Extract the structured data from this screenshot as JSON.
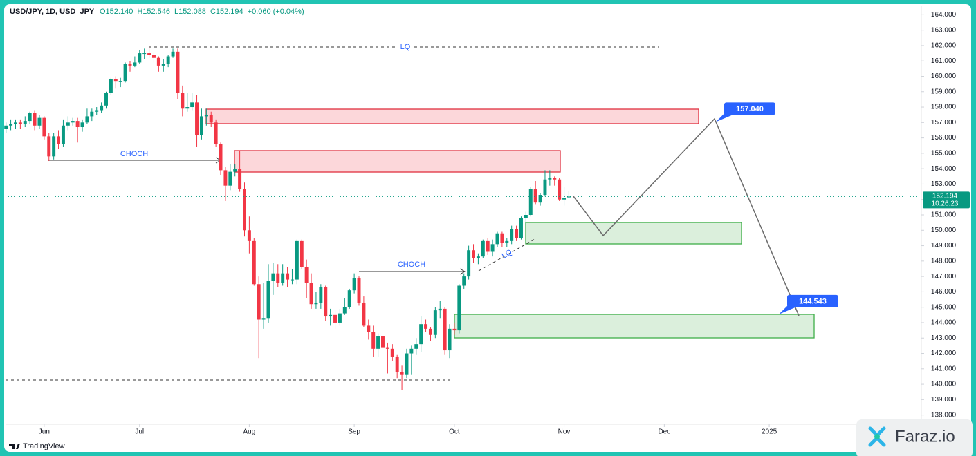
{
  "chart_data": {
    "type": "candlestick",
    "title": "USD/JPY, 1D, USD_JPY",
    "legend_values": [
      "O152.140",
      "H152.546",
      "L152.088",
      "C152.194",
      "+0.060 (+0.04%)"
    ],
    "up_color": "#089981",
    "down_color": "#f23645",
    "grid": false,
    "x": [
      0,
      1,
      2,
      3,
      4,
      5,
      6,
      7,
      8,
      9,
      10,
      11,
      12,
      13,
      14,
      15,
      16,
      17,
      18,
      19,
      20,
      21,
      22,
      23,
      24,
      25,
      26,
      27,
      28,
      29,
      30,
      31,
      32,
      33,
      34,
      35,
      36,
      37,
      38,
      39,
      40,
      41,
      42,
      43,
      44,
      45,
      46,
      47,
      48,
      49,
      50,
      51,
      52,
      53,
      54,
      55,
      56,
      57,
      58,
      59,
      60,
      61,
      62,
      63,
      64,
      65,
      66,
      67,
      68,
      69,
      70,
      71,
      72,
      73,
      74,
      75,
      76,
      77,
      78,
      79,
      80,
      81,
      82,
      83,
      84,
      85,
      86,
      87,
      88,
      89,
      90,
      91,
      92,
      93,
      94,
      95,
      96,
      97,
      98,
      99,
      100,
      101,
      102,
      103,
      104,
      105,
      106,
      107,
      108,
      109,
      110,
      111,
      112,
      113,
      114,
      115,
      116,
      117,
      118
    ],
    "ohlc": [
      [
        156.6,
        157.0,
        156.3,
        156.8
      ],
      [
        156.8,
        157.2,
        156.5,
        156.9
      ],
      [
        156.9,
        157.2,
        156.6,
        157.0
      ],
      [
        157.0,
        157.2,
        156.6,
        156.9
      ],
      [
        156.9,
        157.4,
        156.7,
        157.1
      ],
      [
        157.1,
        157.7,
        156.9,
        157.6
      ],
      [
        157.6,
        157.8,
        156.5,
        156.8
      ],
      [
        156.8,
        157.5,
        156.6,
        157.3
      ],
      [
        157.3,
        157.4,
        155.9,
        156.1
      ],
      [
        156.1,
        156.3,
        154.5,
        154.8
      ],
      [
        154.8,
        156.3,
        154.6,
        156.1
      ],
      [
        156.1,
        156.5,
        155.3,
        155.6
      ],
      [
        155.6,
        157.2,
        155.4,
        156.8
      ],
      [
        156.8,
        157.4,
        156.5,
        157.0
      ],
      [
        157.0,
        157.3,
        156.8,
        157.1
      ],
      [
        157.1,
        157.3,
        155.7,
        156.7
      ],
      [
        156.7,
        157.2,
        156.4,
        157.0
      ],
      [
        157.0,
        157.9,
        156.9,
        157.4
      ],
      [
        157.4,
        157.9,
        157.1,
        157.7
      ],
      [
        157.7,
        158.0,
        157.5,
        157.8
      ],
      [
        157.8,
        158.3,
        157.6,
        158.1
      ],
      [
        158.1,
        159.0,
        157.9,
        158.9
      ],
      [
        158.9,
        159.9,
        158.8,
        159.8
      ],
      [
        159.8,
        160.0,
        159.2,
        159.7
      ],
      [
        159.7,
        159.9,
        159.3,
        159.7
      ],
      [
        159.7,
        160.9,
        159.6,
        160.8
      ],
      [
        160.8,
        161.0,
        160.3,
        160.7
      ],
      [
        160.7,
        161.3,
        160.6,
        160.9
      ],
      [
        160.9,
        161.7,
        160.8,
        161.5
      ],
      [
        161.5,
        161.8,
        161.1,
        161.5
      ],
      [
        161.5,
        161.95,
        161.2,
        161.4
      ],
      [
        161.4,
        161.6,
        160.9,
        161.2
      ],
      [
        161.2,
        161.3,
        160.3,
        160.7
      ],
      [
        160.7,
        161.1,
        160.3,
        160.8
      ],
      [
        160.8,
        161.4,
        160.6,
        161.3
      ],
      [
        161.3,
        161.8,
        161.2,
        161.6
      ],
      [
        161.6,
        161.8,
        158.5,
        158.9
      ],
      [
        158.9,
        159.4,
        157.4,
        157.9
      ],
      [
        157.9,
        158.9,
        157.7,
        158.0
      ],
      [
        158.0,
        158.9,
        157.8,
        158.3
      ],
      [
        158.3,
        158.8,
        155.4,
        156.2
      ],
      [
        156.2,
        157.9,
        155.9,
        157.4
      ],
      [
        157.4,
        157.9,
        156.8,
        157.5
      ],
      [
        157.5,
        157.7,
        156.7,
        157.0
      ],
      [
        157.0,
        157.2,
        155.4,
        155.6
      ],
      [
        155.6,
        155.7,
        153.6,
        153.9
      ],
      [
        153.9,
        154.1,
        151.9,
        152.9
      ],
      [
        152.9,
        154.3,
        152.6,
        153.8
      ],
      [
        153.8,
        154.3,
        153.5,
        154.0
      ],
      [
        154.0,
        155.2,
        152.5,
        152.7
      ],
      [
        152.7,
        153.1,
        149.6,
        150.0
      ],
      [
        150.0,
        150.9,
        148.5,
        149.3
      ],
      [
        149.3,
        149.5,
        146.4,
        146.5
      ],
      [
        146.5,
        147.0,
        141.7,
        144.2
      ],
      [
        144.2,
        146.6,
        143.6,
        144.3
      ],
      [
        144.3,
        147.8,
        144.0,
        146.7
      ],
      [
        146.7,
        147.9,
        145.8,
        147.2
      ],
      [
        147.2,
        147.8,
        146.3,
        146.6
      ],
      [
        146.6,
        147.8,
        146.4,
        147.2
      ],
      [
        147.2,
        147.6,
        146.3,
        146.8
      ],
      [
        146.8,
        147.5,
        146.5,
        146.8
      ],
      [
        146.8,
        149.4,
        146.5,
        149.3
      ],
      [
        149.3,
        149.4,
        147.5,
        147.6
      ],
      [
        147.6,
        148.1,
        145.6,
        146.6
      ],
      [
        146.6,
        147.2,
        144.9,
        145.2
      ],
      [
        145.2,
        146.0,
        144.9,
        145.3
      ],
      [
        145.3,
        146.5,
        144.9,
        146.3
      ],
      [
        146.3,
        146.4,
        144.1,
        144.4
      ],
      [
        144.4,
        144.9,
        143.8,
        144.5
      ],
      [
        144.5,
        144.8,
        143.6,
        144.0
      ],
      [
        144.0,
        144.9,
        143.8,
        144.6
      ],
      [
        144.6,
        145.6,
        144.5,
        145.0
      ],
      [
        145.0,
        146.2,
        144.9,
        146.1
      ],
      [
        146.1,
        147.2,
        145.9,
        146.9
      ],
      [
        146.9,
        147.0,
        145.1,
        145.3
      ],
      [
        145.3,
        145.7,
        143.7,
        143.8
      ],
      [
        143.8,
        144.2,
        142.9,
        143.4
      ],
      [
        143.4,
        143.8,
        141.8,
        142.3
      ],
      [
        142.3,
        143.3,
        141.8,
        143.1
      ],
      [
        143.1,
        143.5,
        142.0,
        142.4
      ],
      [
        142.4,
        142.7,
        140.7,
        142.3
      ],
      [
        142.3,
        142.6,
        141.5,
        141.8
      ],
      [
        141.8,
        141.9,
        140.4,
        140.8
      ],
      [
        140.8,
        141.2,
        139.6,
        140.6
      ],
      [
        140.6,
        142.3,
        140.4,
        142.0
      ],
      [
        142.0,
        142.5,
        140.6,
        142.3
      ],
      [
        142.3,
        143.0,
        141.9,
        142.6
      ],
      [
        142.6,
        144.4,
        142.1,
        143.9
      ],
      [
        143.9,
        144.2,
        143.4,
        143.6
      ],
      [
        143.6,
        143.7,
        142.8,
        143.2
      ],
      [
        143.2,
        145.0,
        143.0,
        144.8
      ],
      [
        144.8,
        145.4,
        144.3,
        144.9
      ],
      [
        144.9,
        145.0,
        141.9,
        142.2
      ],
      [
        142.2,
        143.9,
        141.7,
        143.6
      ],
      [
        143.6,
        144.0,
        143.2,
        143.5
      ],
      [
        143.5,
        146.5,
        143.3,
        146.4
      ],
      [
        146.4,
        147.2,
        146.2,
        147.0
      ],
      [
        147.0,
        149.0,
        146.8,
        148.7
      ],
      [
        148.7,
        149.1,
        147.9,
        148.2
      ],
      [
        148.2,
        148.5,
        147.8,
        148.3
      ],
      [
        148.3,
        149.4,
        148.2,
        149.3
      ],
      [
        149.3,
        149.5,
        148.4,
        148.6
      ],
      [
        148.6,
        149.4,
        148.3,
        149.1
      ],
      [
        149.1,
        149.9,
        148.9,
        149.8
      ],
      [
        149.8,
        149.9,
        148.9,
        149.2
      ],
      [
        149.2,
        149.5,
        148.9,
        149.3
      ],
      [
        149.3,
        150.3,
        149.1,
        150.1
      ],
      [
        150.1,
        150.3,
        149.3,
        149.5
      ],
      [
        149.5,
        150.9,
        149.4,
        150.8
      ],
      [
        150.8,
        151.2,
        150.4,
        151.0
      ],
      [
        151.0,
        152.8,
        150.9,
        152.7
      ],
      [
        152.7,
        153.2,
        151.7,
        151.8
      ],
      [
        151.8,
        152.4,
        151.6,
        152.3
      ],
      [
        152.3,
        153.9,
        152.2,
        153.3
      ],
      [
        153.3,
        153.9,
        152.9,
        153.4
      ],
      [
        153.4,
        153.5,
        152.9,
        153.3
      ],
      [
        153.3,
        153.4,
        151.9,
        152.0
      ],
      [
        152.0,
        152.8,
        151.6,
        152.1
      ],
      [
        152.14,
        152.546,
        152.088,
        152.194
      ]
    ],
    "xlim": [
      -0.1,
      191.6
    ],
    "xticks": [
      {
        "value": 8,
        "label": "Jun"
      },
      {
        "value": 28,
        "label": "Jul"
      },
      {
        "value": 51,
        "label": "Aug"
      },
      {
        "value": 73,
        "label": "Sep"
      },
      {
        "value": 94,
        "label": "Oct"
      },
      {
        "value": 117,
        "label": "Nov"
      },
      {
        "value": 138,
        "label": "Dec"
      },
      {
        "value": 160,
        "label": "2025"
      }
    ],
    "ylim": [
      137.4,
      164.6
    ],
    "yticks": [
      {
        "value": 138,
        "label": "138.000"
      },
      {
        "value": 139,
        "label": "139.000"
      },
      {
        "value": 140,
        "label": "140.000"
      },
      {
        "value": 141,
        "label": "141.000"
      },
      {
        "value": 142,
        "label": "142.000"
      },
      {
        "value": 143,
        "label": "143.000"
      },
      {
        "value": 144,
        "label": "144.000"
      },
      {
        "value": 145,
        "label": "145.000"
      },
      {
        "value": 146,
        "label": "146.000"
      },
      {
        "value": 147,
        "label": "147.000"
      },
      {
        "value": 148,
        "label": "148.000"
      },
      {
        "value": 149,
        "label": "149.000"
      },
      {
        "value": 150,
        "label": "150.000"
      },
      {
        "value": 151,
        "label": "151.000"
      },
      {
        "value": 152,
        "label": "152.000"
      },
      {
        "value": 153,
        "label": "153.000"
      },
      {
        "value": 154,
        "label": "154.000"
      },
      {
        "value": 155,
        "label": "155.000"
      },
      {
        "value": 156,
        "label": "156.000"
      },
      {
        "value": 157,
        "label": "157.000"
      },
      {
        "value": 158,
        "label": "158.000"
      },
      {
        "value": 159,
        "label": "159.000"
      },
      {
        "value": 160,
        "label": "160.000"
      },
      {
        "value": 161,
        "label": "161.000"
      },
      {
        "value": 162,
        "label": "162.000"
      },
      {
        "value": 163,
        "label": "163.000"
      },
      {
        "value": 164,
        "label": "164.000"
      }
    ],
    "last_price": 152.194,
    "countdown": "10:26:23",
    "annotations": {
      "choch": [
        "CHOCH",
        "CHOCH"
      ],
      "lq": [
        "LQ",
        "LQ"
      ],
      "targets": [
        {
          "value": 157.04,
          "label": "157.040"
        },
        {
          "value": 144.543,
          "label": "144.543"
        }
      ]
    }
  },
  "branding": {
    "platform": "TradingView",
    "watermark": "Faraz.io"
  }
}
